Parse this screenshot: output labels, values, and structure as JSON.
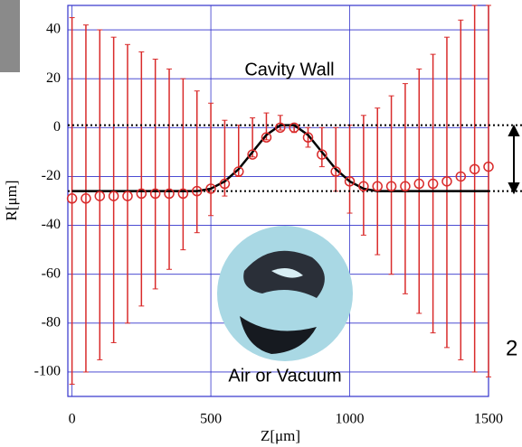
{
  "chart_data": {
    "type": "errorbar",
    "x_label": "Z[μm]",
    "y_label": "R[μm]",
    "annotations": [
      "Cavity Wall",
      "Air or Vacuum",
      "2"
    ],
    "xlim": [
      -15,
      1500
    ],
    "ylim": [
      -110,
      50
    ],
    "xticks": [
      0,
      500,
      1000,
      1500
    ],
    "yticks": [
      -100,
      -80,
      -60,
      -40,
      -20,
      0,
      20,
      40
    ],
    "grid": true,
    "grid_color": "#3333cc",
    "x": [
      0,
      50,
      100,
      150,
      200,
      250,
      300,
      350,
      400,
      450,
      500,
      550,
      600,
      650,
      700,
      750,
      800,
      850,
      900,
      950,
      1000,
      1050,
      1100,
      1150,
      1200,
      1250,
      1300,
      1350,
      1400,
      1450,
      1500
    ],
    "series": [
      {
        "color": "#d92b2b",
        "values": [
          -29,
          -29,
          -28,
          -28,
          -28,
          -27,
          -27,
          -27,
          -27,
          -26,
          -25,
          -23,
          -18,
          -11,
          -4,
          0,
          0,
          -4,
          -11,
          -18,
          -22,
          -24,
          -24,
          -24,
          -24,
          -23,
          -23,
          -22,
          -20,
          -17,
          -16
        ],
        "lower": [
          -105,
          -100,
          -95,
          -88,
          -80,
          -73,
          -66,
          -58,
          -50,
          -43,
          -36,
          -28,
          -20,
          -12,
          -5,
          -1,
          -2,
          -8,
          -16,
          -26,
          -35,
          -44,
          -52,
          -60,
          -68,
          -76,
          -84,
          -90,
          -95,
          -100,
          -102
        ],
        "upper": [
          45,
          42,
          40,
          37,
          34,
          31,
          28,
          24,
          20,
          15,
          10,
          3,
          1,
          4,
          6,
          5,
          1,
          0,
          0,
          0,
          1,
          5,
          8,
          13,
          18,
          24,
          30,
          37,
          44,
          50,
          50
        ]
      },
      {
        "color": "#000000",
        "values": [
          -26,
          -26,
          -26,
          -26,
          -26,
          -26,
          -26,
          -26,
          -26,
          -26,
          -25,
          -22,
          -17,
          -10,
          -3,
          1,
          1,
          -3,
          -10,
          -17,
          -22,
          -25,
          -26,
          -26,
          -26,
          -26,
          -26,
          -26,
          -26,
          -26,
          -26
        ]
      }
    ],
    "hlines": [
      1,
      -26
    ]
  }
}
